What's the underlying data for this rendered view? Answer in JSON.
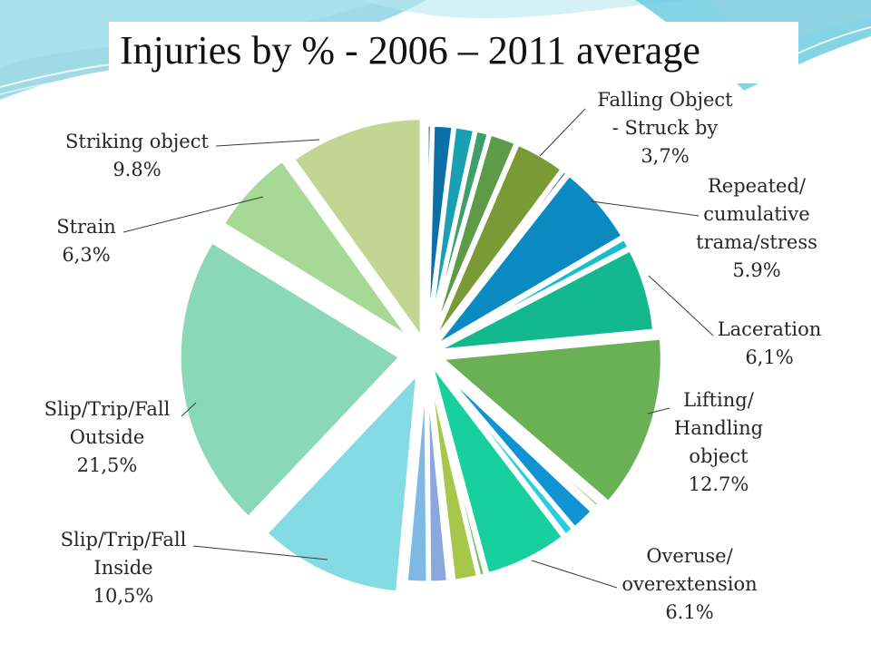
{
  "slide": {
    "title": "Injuries by %  - 2006 – 2011 average",
    "accent_colors": [
      "#8fd3e0",
      "#b7e7f0",
      "#5cc6de"
    ]
  },
  "chart_data": {
    "type": "pie",
    "title": "Injuries by %  - 2006 – 2011 average",
    "exploded": true,
    "start_angle_deg": 0,
    "direction": "clockwise",
    "slices": [
      {
        "value": 0.4,
        "color": "#1f5e9a"
      },
      {
        "value": 1.5,
        "color": "#0d6fa8"
      },
      {
        "value": 1.5,
        "color": "#1aa0b2"
      },
      {
        "value": 1.0,
        "color": "#3e9e6c"
      },
      {
        "value": 2.0,
        "color": "#5d9b48"
      },
      {
        "label": "Falling Object - Struck by",
        "value": 3.7,
        "value_label": "3,7%",
        "color": "#7a9a35"
      },
      {
        "value": 0.4,
        "color": "#2f6db5"
      },
      {
        "label": "Repeated/ cumulative trama/stress",
        "value": 5.9,
        "value_label": "5.9%",
        "color": "#0a8ac0"
      },
      {
        "value": 0.8,
        "color": "#17bccc"
      },
      {
        "label": "Laceration",
        "value": 6.1,
        "value_label": "6,1%",
        "color": "#13b88e"
      },
      {
        "label": "Lifting/ Handling object",
        "value": 12.7,
        "value_label": "12.7%",
        "color": "#6ab155"
      },
      {
        "value": 0.4,
        "color": "#8fbf3f"
      },
      {
        "value": 0.3,
        "color": "#1f6aa8"
      },
      {
        "value": 1.8,
        "color": "#0f93d2"
      },
      {
        "value": 0.8,
        "color": "#2ccde0"
      },
      {
        "label": "Overuse/ overextension",
        "value": 6.1,
        "value_label": "6.1%",
        "color": "#17d09e"
      },
      {
        "value": 0.5,
        "color": "#7cc35a"
      },
      {
        "value": 1.8,
        "color": "#a7c64a"
      },
      {
        "value": 0.3,
        "color": "#cfd77a"
      },
      {
        "value": 1.4,
        "color": "#8aa7de"
      },
      {
        "value": 1.6,
        "color": "#7eb9e3"
      },
      {
        "label": "Slip/Trip/Fall Inside",
        "value": 10.5,
        "value_label": "10,5%",
        "color": "#85dbe4"
      },
      {
        "label": "Slip/Trip/Fall Outside",
        "value": 21.5,
        "value_label": "21,5%",
        "color": "#8ad8b9"
      },
      {
        "label": "Strain",
        "value": 6.3,
        "value_label": "6,3%",
        "color": "#a6d996"
      },
      {
        "label": "Striking object",
        "value": 9.8,
        "value_label": "9.8%",
        "color": "#c2d593"
      }
    ],
    "labels": [
      {
        "lines": [
          "Falling Object",
          "- Struck by",
          "3,7%"
        ]
      },
      {
        "lines": [
          "Repeated/",
          "cumulative",
          "trama/stress",
          "5.9%"
        ]
      },
      {
        "lines": [
          "Laceration",
          "6,1%"
        ]
      },
      {
        "lines": [
          "Lifting/",
          "Handling",
          "object",
          "12.7%"
        ]
      },
      {
        "lines": [
          "Overuse/",
          "overextension",
          "6.1%"
        ]
      },
      {
        "lines": [
          "Slip/Trip/Fall",
          "Inside",
          "10,5%"
        ]
      },
      {
        "lines": [
          "Slip/Trip/Fall",
          "Outside",
          "21,5%"
        ]
      },
      {
        "lines": [
          "Strain",
          "6,3%"
        ]
      },
      {
        "lines": [
          "Striking object",
          "9.8%"
        ]
      }
    ]
  }
}
